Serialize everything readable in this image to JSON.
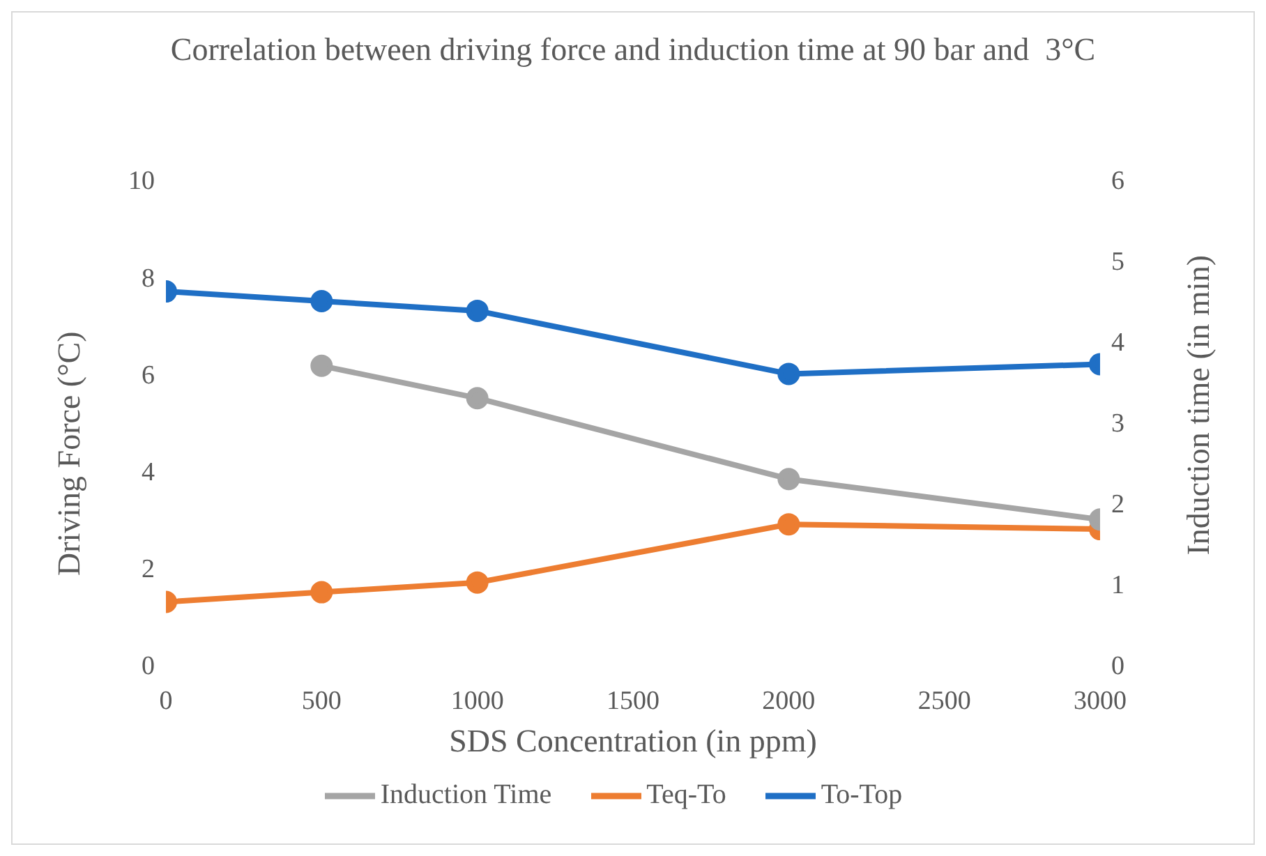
{
  "chart_data": {
    "type": "line",
    "title": "Correlation between driving force and induction time at 90 bar and  3°C",
    "xlabel": "SDS Concentration (in ppm)",
    "ylabel": "Driving Force (°C)",
    "y2label": "Induction time (in min)",
    "xlim": [
      0,
      3000
    ],
    "xticks": [
      0,
      500,
      1000,
      1500,
      2000,
      2500,
      3000
    ],
    "ylim": [
      0,
      10
    ],
    "yticks": [
      0,
      2,
      4,
      6,
      8,
      10
    ],
    "y2lim": [
      0,
      6
    ],
    "y2ticks": [
      0,
      1,
      2,
      3,
      4,
      5,
      6
    ],
    "grid": false,
    "legend": "bottom",
    "marker": "circle",
    "line_style": "solid",
    "series": [
      {
        "name": "To-Top",
        "color": "#1f6fc5",
        "x": [
          0,
          500,
          1000,
          2000,
          3000
        ],
        "values": [
          7.7,
          7.5,
          7.3,
          6.0,
          6.2
        ]
      },
      {
        "name": "Teq-To",
        "color": "#ed7d31",
        "x": [
          0,
          500,
          1000,
          2000,
          3000
        ],
        "values": [
          1.3,
          1.5,
          1.7,
          2.9,
          2.8
        ]
      },
      {
        "name": "Induction Time",
        "color": "#a5a5a5",
        "axis": "y2",
        "x": [
          500,
          1000,
          2000,
          3000
        ],
        "values": [
          3.7,
          3.3,
          2.3,
          1.8
        ]
      }
    ]
  }
}
